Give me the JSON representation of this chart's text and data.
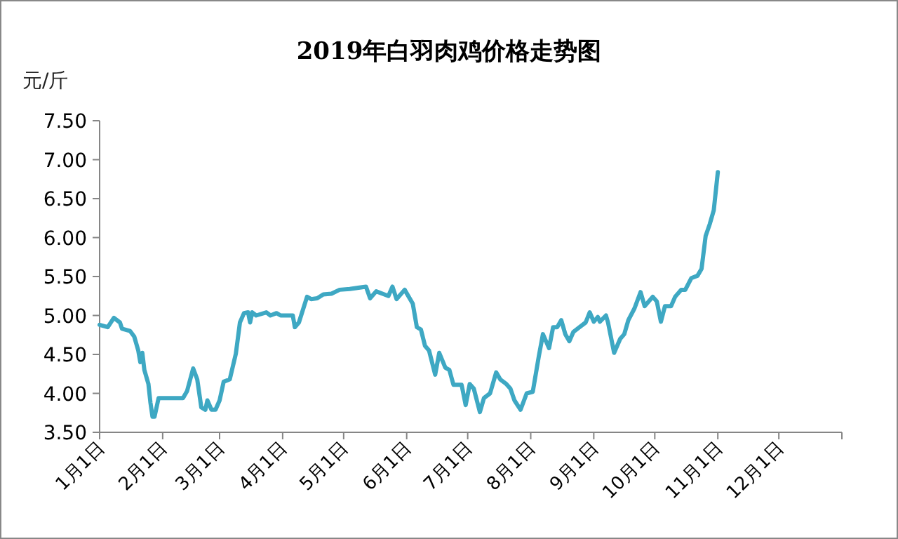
{
  "chart_data": {
    "type": "line",
    "title": "2019年白羽肉鸡价格走势图",
    "ylabel": "元/斤",
    "color": "#3ea8c3",
    "grid": false,
    "marker": "none",
    "line_style": "solid",
    "xlim": [
      "2019-01-01",
      "2020-01-01"
    ],
    "xticks": [
      {
        "value": "2019-01-01",
        "label": "1月1日"
      },
      {
        "value": "2019-02-01",
        "label": "2月1日"
      },
      {
        "value": "2019-03-01",
        "label": "3月1日"
      },
      {
        "value": "2019-04-01",
        "label": "4月1日"
      },
      {
        "value": "2019-05-01",
        "label": "5月1日"
      },
      {
        "value": "2019-06-01",
        "label": "6月1日"
      },
      {
        "value": "2019-07-01",
        "label": "7月1日"
      },
      {
        "value": "2019-08-01",
        "label": "8月1日"
      },
      {
        "value": "2019-09-01",
        "label": "9月1日"
      },
      {
        "value": "2019-10-01",
        "label": "10月1日"
      },
      {
        "value": "2019-11-01",
        "label": "11月1日"
      },
      {
        "value": "2019-12-01",
        "label": "12月1日"
      },
      {
        "value": "2020-01-01",
        "label": null
      }
    ],
    "ylim": [
      3.5,
      7.5
    ],
    "yticks": [
      {
        "value": 3.5,
        "label": "3.50"
      },
      {
        "value": 4,
        "label": "4.00"
      },
      {
        "value": 4.5,
        "label": "4.50"
      },
      {
        "value": 5,
        "label": "5.00"
      },
      {
        "value": 5.5,
        "label": "5.50"
      },
      {
        "value": 6,
        "label": "6.00"
      },
      {
        "value": 6.5,
        "label": "6.50"
      },
      {
        "value": 7,
        "label": "7.00"
      },
      {
        "value": 7.5,
        "label": "7.50"
      }
    ],
    "x": [
      "2019-01-01",
      "2019-01-05",
      "2019-01-08",
      "2019-01-11",
      "2019-01-12",
      "2019-01-16",
      "2019-01-18",
      "2019-01-20",
      "2019-01-21",
      "2019-01-22",
      "2019-01-23",
      "2019-01-25",
      "2019-01-26",
      "2019-01-27",
      "2019-01-28",
      "2019-01-30",
      "2019-02-11",
      "2019-02-13",
      "2019-02-16",
      "2019-02-18",
      "2019-02-20",
      "2019-02-22",
      "2019-02-23",
      "2019-02-25",
      "2019-02-27",
      "2019-03-01",
      "2019-03-03",
      "2019-03-06",
      "2019-03-09",
      "2019-03-11",
      "2019-03-13",
      "2019-03-15",
      "2019-03-16",
      "2019-03-17",
      "2019-03-19",
      "2019-03-24",
      "2019-03-26",
      "2019-03-29",
      "2019-03-31",
      "2019-04-06",
      "2019-04-07",
      "2019-04-09",
      "2019-04-13",
      "2019-04-15",
      "2019-04-18",
      "2019-04-21",
      "2019-04-25",
      "2019-04-29",
      "2019-05-04",
      "2019-05-12",
      "2019-05-14",
      "2019-05-17",
      "2019-05-21",
      "2019-05-23",
      "2019-05-25",
      "2019-05-27",
      "2019-05-31",
      "2019-06-04",
      "2019-06-06",
      "2019-06-08",
      "2019-06-10",
      "2019-06-12",
      "2019-06-15",
      "2019-06-17",
      "2019-06-20",
      "2019-06-22",
      "2019-06-24",
      "2019-06-28",
      "2019-06-30",
      "2019-07-02",
      "2019-07-04",
      "2019-07-07",
      "2019-07-09",
      "2019-07-12",
      "2019-07-15",
      "2019-07-17",
      "2019-07-20",
      "2019-07-22",
      "2019-07-24",
      "2019-07-27",
      "2019-07-30",
      "2019-08-02",
      "2019-08-05",
      "2019-08-07",
      "2019-08-10",
      "2019-08-12",
      "2019-08-14",
      "2019-08-16",
      "2019-08-18",
      "2019-08-20",
      "2019-08-22",
      "2019-08-25",
      "2019-08-28",
      "2019-08-30",
      "2019-09-01",
      "2019-09-03",
      "2019-09-04",
      "2019-09-07",
      "2019-09-08",
      "2019-09-11",
      "2019-09-14",
      "2019-09-16",
      "2019-09-18",
      "2019-09-21",
      "2019-09-24",
      "2019-09-26",
      "2019-09-30",
      "2019-10-02",
      "2019-10-04",
      "2019-10-06",
      "2019-10-09",
      "2019-10-11",
      "2019-10-14",
      "2019-10-16",
      "2019-10-19",
      "2019-10-22",
      "2019-10-24",
      "2019-10-26",
      "2019-10-28",
      "2019-10-30",
      "2019-11-01"
    ],
    "values": [
      4.88,
      4.85,
      4.97,
      4.91,
      4.83,
      4.8,
      4.73,
      4.55,
      4.4,
      4.52,
      4.3,
      4.12,
      3.88,
      3.7,
      3.7,
      3.94,
      3.94,
      4.03,
      4.32,
      4.18,
      3.82,
      3.79,
      3.91,
      3.79,
      3.79,
      3.91,
      4.15,
      4.18,
      4.51,
      4.91,
      5.03,
      5.04,
      4.91,
      5.04,
      5.0,
      5.04,
      5.0,
      5.03,
      5.0,
      5.0,
      4.85,
      4.91,
      5.24,
      5.21,
      5.22,
      5.27,
      5.28,
      5.33,
      5.34,
      5.37,
      5.22,
      5.31,
      5.27,
      5.25,
      5.37,
      5.21,
      5.33,
      5.15,
      4.85,
      4.82,
      4.61,
      4.55,
      4.24,
      4.52,
      4.33,
      4.3,
      4.11,
      4.11,
      3.85,
      4.12,
      4.06,
      3.76,
      3.94,
      4.0,
      4.27,
      4.18,
      4.12,
      4.06,
      3.91,
      3.79,
      4.0,
      4.02,
      4.48,
      4.76,
      4.58,
      4.85,
      4.85,
      4.94,
      4.76,
      4.67,
      4.79,
      4.85,
      4.91,
      5.04,
      4.92,
      4.98,
      4.92,
      5.0,
      4.91,
      4.52,
      4.7,
      4.76,
      4.94,
      5.09,
      5.3,
      5.12,
      5.24,
      5.18,
      4.92,
      5.12,
      5.12,
      5.24,
      5.33,
      5.33,
      5.48,
      5.51,
      5.6,
      6.02,
      6.17,
      6.35,
      6.84
    ]
  }
}
